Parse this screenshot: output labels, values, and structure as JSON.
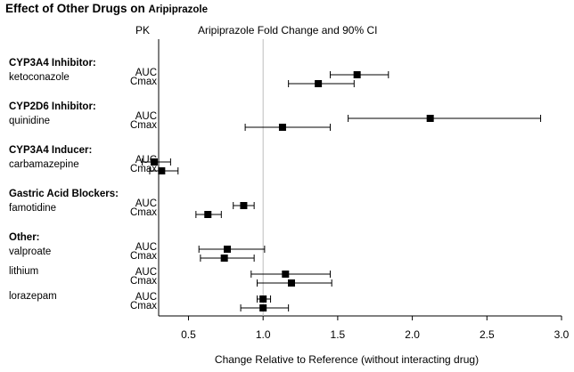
{
  "title": "Effect of Other Drugs on",
  "title_drug": "Aripiprazole",
  "pk_header": "PK",
  "chart_data": {
    "type": "forest",
    "title": "Aripiprazole Fold Change and 90% CI",
    "xlabel": "Change Relative to Reference (without interacting drug)",
    "xlim": [
      0.3,
      3.0
    ],
    "xticks": [
      "0.5",
      "1.0",
      "1.5",
      "2.0",
      "2.5",
      "3.0"
    ],
    "reference_line": 1.0,
    "groups": [
      {
        "label": "CYP3A4 Inhibitor:",
        "drugs": [
          {
            "name": "ketoconazole",
            "rows": [
              {
                "pk": "AUC",
                "estimate": 1.63,
                "ci": [
                  1.45,
                  1.84
                ]
              },
              {
                "pk": "Cmax",
                "estimate": 1.37,
                "ci": [
                  1.17,
                  1.61
                ]
              }
            ]
          }
        ]
      },
      {
        "label": "CYP2D6 Inhibitor:",
        "drugs": [
          {
            "name": "quinidine",
            "rows": [
              {
                "pk": "AUC",
                "estimate": 2.12,
                "ci": [
                  1.57,
                  2.86
                ]
              },
              {
                "pk": "Cmax",
                "estimate": 1.13,
                "ci": [
                  0.88,
                  1.45
                ]
              }
            ]
          }
        ]
      },
      {
        "label": "CYP3A4 Inducer:",
        "drugs": [
          {
            "name": "carbamazepine",
            "rows": [
              {
                "pk": "AUC",
                "estimate": 0.27,
                "ci": [
                  0.19,
                  0.38
                ]
              },
              {
                "pk": "Cmax",
                "estimate": 0.32,
                "ci": [
                  0.24,
                  0.43
                ]
              }
            ]
          }
        ]
      },
      {
        "label": "Gastric Acid Blockers:",
        "drugs": [
          {
            "name": "famotidine",
            "rows": [
              {
                "pk": "AUC",
                "estimate": 0.87,
                "ci": [
                  0.8,
                  0.94
                ]
              },
              {
                "pk": "Cmax",
                "estimate": 0.63,
                "ci": [
                  0.55,
                  0.72
                ]
              }
            ]
          }
        ]
      },
      {
        "label": "Other:",
        "drugs": [
          {
            "name": "valproate",
            "rows": [
              {
                "pk": "AUC",
                "estimate": 0.76,
                "ci": [
                  0.57,
                  1.01
                ]
              },
              {
                "pk": "Cmax",
                "estimate": 0.74,
                "ci": [
                  0.58,
                  0.94
                ]
              }
            ]
          },
          {
            "name": "lithium",
            "rows": [
              {
                "pk": "AUC",
                "estimate": 1.15,
                "ci": [
                  0.92,
                  1.45
                ]
              },
              {
                "pk": "Cmax",
                "estimate": 1.19,
                "ci": [
                  0.96,
                  1.46
                ]
              }
            ]
          },
          {
            "name": "lorazepam",
            "rows": [
              {
                "pk": "AUC",
                "estimate": 1.0,
                "ci": [
                  0.96,
                  1.05
                ]
              },
              {
                "pk": "Cmax",
                "estimate": 1.0,
                "ci": [
                  0.85,
                  1.17
                ]
              }
            ]
          }
        ]
      }
    ]
  }
}
